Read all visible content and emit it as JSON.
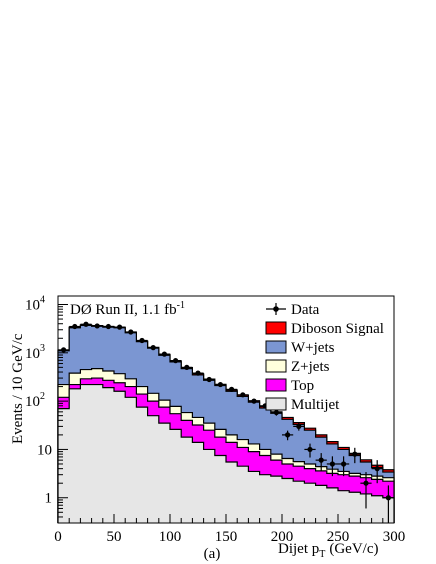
{
  "chart_data": {
    "type": "area",
    "panel_tag": "(a)",
    "annotation": {
      "main": "DØ Run II, 1.1 fb",
      "exponent": "-1"
    },
    "xlabel": {
      "main": "Dijet p",
      "subscript": "T",
      "unit": "(GeV/c)"
    },
    "ylabel": "Events / 10 GeV/c",
    "xlim": [
      0,
      300
    ],
    "ylim": [
      0.3,
      15000
    ],
    "y_log_scale": true,
    "x_ticks": [
      0,
      50,
      100,
      150,
      200,
      250,
      300
    ],
    "x_tick_labels": [
      "0",
      "50",
      "100",
      "150",
      "200",
      "250",
      "300"
    ],
    "y_ticks": [
      1,
      10,
      100,
      1000,
      10000
    ],
    "y_tick_labels": [
      {
        "main": "1",
        "exp": ""
      },
      {
        "main": "10",
        "exp": ""
      },
      {
        "main": "10",
        "exp": "2"
      },
      {
        "main": "10",
        "exp": "3"
      },
      {
        "main": "10",
        "exp": "4"
      }
    ],
    "legend_position": "top-right",
    "bin_edges": [
      0,
      10,
      20,
      30,
      40,
      50,
      60,
      70,
      80,
      90,
      100,
      110,
      120,
      130,
      140,
      150,
      160,
      170,
      180,
      190,
      200,
      210,
      220,
      230,
      240,
      250,
      260,
      270,
      280,
      290,
      300
    ],
    "series": [
      {
        "name": "Multijet",
        "color": "#e6e6e6",
        "stack_top": [
          70,
          180,
          220,
          220,
          190,
          160,
          120,
          75,
          50,
          35,
          26,
          18,
          14,
          10,
          7.5,
          5.5,
          4.5,
          3.5,
          3,
          2.8,
          2.5,
          2.2,
          2,
          1.8,
          1.6,
          1.4,
          1.3,
          1.2,
          1.1,
          1.0
        ]
      },
      {
        "name": "Top",
        "color": "#ff00ff",
        "stack_top": [
          120,
          220,
          290,
          300,
          270,
          240,
          200,
          140,
          100,
          75,
          55,
          40,
          32,
          25,
          18,
          14,
          11,
          9,
          7.5,
          6,
          5,
          4.5,
          4,
          3.6,
          3.2,
          3,
          2.8,
          2.6,
          2.4,
          2.2
        ]
      },
      {
        "name": "Z+jets",
        "color": "#ffffdd",
        "stack_top": [
          220,
          380,
          450,
          470,
          420,
          370,
          290,
          200,
          145,
          105,
          78,
          58,
          46,
          35,
          26,
          20,
          16,
          13,
          10,
          8,
          6.5,
          5.6,
          5,
          4.4,
          3.9,
          3.5,
          3.2,
          3,
          2.8,
          2.6
        ]
      },
      {
        "name": "W+jets",
        "color": "#7b96d2",
        "stack_top": [
          1100,
          3300,
          3700,
          3550,
          3400,
          3300,
          2600,
          1700,
          1250,
          890,
          650,
          470,
          350,
          270,
          210,
          160,
          125,
          95,
          72,
          56,
          42,
          33,
          25,
          18,
          13,
          10,
          7.5,
          5.5,
          4.2,
          3.4
        ]
      },
      {
        "name": "Diboson Signal",
        "color": "#ff0000",
        "stack_top": [
          1140,
          3400,
          3800,
          3650,
          3500,
          3380,
          2680,
          1760,
          1300,
          930,
          680,
          495,
          370,
          285,
          222,
          170,
          133,
          102,
          78,
          60,
          46,
          36,
          27.5,
          20,
          14.5,
          11,
          8.3,
          6.1,
          4.7,
          3.8
        ]
      }
    ],
    "data": {
      "name": "Data",
      "x": [
        5,
        15,
        25,
        35,
        45,
        55,
        65,
        75,
        85,
        95,
        105,
        115,
        125,
        135,
        145,
        155,
        165,
        175,
        185,
        195,
        205,
        215,
        225,
        235,
        245,
        255,
        265,
        275,
        285,
        295
      ],
      "y": [
        1150,
        3500,
        3900,
        3600,
        3500,
        3400,
        2700,
        1800,
        1280,
        940,
        690,
        500,
        380,
        280,
        220,
        175,
        135,
        100,
        80,
        58,
        20,
        30,
        10,
        6,
        5,
        5,
        8,
        2,
        4,
        1
      ],
      "y_err_low": [
        34,
        59,
        62,
        60,
        59,
        58,
        52,
        42,
        36,
        31,
        26,
        22,
        19,
        17,
        15,
        13,
        12,
        10,
        9,
        8,
        4.5,
        5.5,
        3.2,
        2.4,
        2.2,
        2.2,
        2.8,
        1.4,
        2,
        0.8
      ],
      "y_err_high": [
        34,
        59,
        62,
        60,
        59,
        58,
        52,
        42,
        36,
        31,
        26,
        22,
        19,
        17,
        15,
        13,
        12,
        10,
        9,
        8,
        4.5,
        5.5,
        3.2,
        2.4,
        2.2,
        2.2,
        2.8,
        1.4,
        2,
        0.8
      ]
    },
    "legend": [
      "Data",
      "Diboson Signal",
      "W+jets",
      "Z+jets",
      "Top",
      "Multijet"
    ]
  }
}
